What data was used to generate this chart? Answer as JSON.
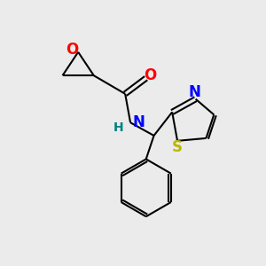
{
  "bg_color": "#ebebeb",
  "bond_color": "#000000",
  "O_color": "#ff0000",
  "N_color": "#0000ff",
  "S_color": "#b8b800",
  "H_color": "#008080",
  "line_width": 1.5,
  "fig_size": [
    3.0,
    3.0
  ],
  "dpi": 100,
  "xlim": [
    0,
    10
  ],
  "ylim": [
    0,
    10
  ]
}
